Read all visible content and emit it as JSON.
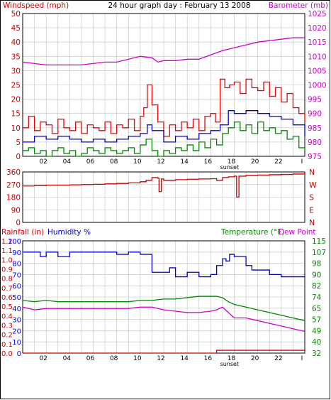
{
  "header": {
    "left_label": "Windspeed (mph)",
    "title": "24 hour graph day : February 13 2008",
    "right_label": "Barometer (mb)"
  },
  "bottom_header": {
    "rainfall_label": "Rainfall (in)",
    "humidity_label": "Humidity %",
    "temperature_label": "Temperature (°F)",
    "dewpoint_label": "Dew Point"
  },
  "colors": {
    "wind": "#ee0000",
    "avg_wind": "#0000cc",
    "gust_low": "#008800",
    "barometer": "#cc00cc",
    "direction": "#cc0000",
    "humidity": "#0000cc",
    "temperature": "#008800",
    "dewpoint": "#cc00cc",
    "rainfall": "#cc0000",
    "grid": "#c0c0c0",
    "left_axis": "#cc0000",
    "right_axis": "#cc00cc",
    "frame": "#000000"
  },
  "chart_data": [
    {
      "type": "line",
      "name": "wind-panel",
      "x_ticks": [
        "02",
        "04",
        "06",
        "08",
        "10",
        "12",
        "14",
        "16",
        "18",
        "20",
        "22",
        "I"
      ],
      "x_marker": "sunset",
      "y_left": {
        "label": "Windspeed (mph)",
        "ylim": [
          0,
          50
        ],
        "ticks": [
          0,
          5,
          10,
          15,
          20,
          25,
          30,
          35,
          40,
          45,
          50
        ]
      },
      "y_right": {
        "label": "Barometer (mb)",
        "ylim": [
          975,
          1025
        ],
        "ticks": [
          975,
          980,
          985,
          990,
          995,
          1000,
          1005,
          1010,
          1015,
          1020,
          1025
        ]
      },
      "series": [
        {
          "name": "Windspeed",
          "axis": "left",
          "x": [
            0,
            0.5,
            1,
            1.5,
            2,
            2.5,
            3,
            3.5,
            4,
            4.5,
            5,
            5.5,
            6,
            6.5,
            7,
            7.5,
            8,
            8.5,
            9,
            9.5,
            10,
            10.3,
            10.6,
            11,
            11.5,
            12,
            12.5,
            13,
            13.5,
            14,
            14.5,
            15,
            15.5,
            16,
            16.4,
            16.8,
            17.2,
            17.6,
            18,
            18.5,
            19,
            19.5,
            20,
            20.5,
            21,
            21.5,
            22,
            22.5,
            23,
            23.5,
            24
          ],
          "y": [
            10,
            14,
            9,
            12,
            11,
            8,
            13,
            10,
            9,
            12,
            8,
            11,
            10,
            9,
            12,
            8,
            11,
            10,
            13,
            9,
            14,
            17,
            25,
            18,
            12,
            7,
            11,
            9,
            12,
            10,
            13,
            9,
            14,
            15,
            12,
            27,
            24,
            25,
            26,
            22,
            27,
            24,
            23,
            26,
            21,
            24,
            19,
            22,
            17,
            15,
            12
          ]
        },
        {
          "name": "Average",
          "axis": "left",
          "x": [
            0,
            1,
            2,
            3,
            4,
            5,
            6,
            7,
            8,
            9,
            10,
            10.6,
            11,
            12,
            13,
            14,
            15,
            16,
            16.8,
            17.5,
            18,
            19,
            20,
            21,
            22,
            23,
            24
          ],
          "y": [
            5,
            7,
            6,
            7,
            6,
            5,
            6,
            5,
            6,
            7,
            8,
            11,
            9,
            5,
            7,
            6,
            8,
            9,
            11,
            16,
            15,
            16,
            15,
            14,
            13,
            11,
            7
          ]
        },
        {
          "name": "Low",
          "axis": "left",
          "x": [
            0,
            0.5,
            1,
            1.5,
            2,
            2.5,
            3,
            3.5,
            4,
            4.5,
            5,
            5.5,
            6,
            6.5,
            7,
            7.5,
            8,
            8.5,
            9,
            9.5,
            10,
            10.5,
            11,
            11.5,
            12,
            12.5,
            13,
            13.5,
            14,
            14.5,
            15,
            15.5,
            16,
            16.5,
            17,
            17.5,
            18,
            18.5,
            19,
            19.5,
            20,
            20.5,
            21,
            21.5,
            22,
            22.5,
            23,
            23.5,
            24
          ],
          "y": [
            2,
            3,
            1,
            2,
            0,
            2,
            3,
            1,
            2,
            0,
            1,
            3,
            2,
            1,
            3,
            2,
            1,
            2,
            3,
            1,
            4,
            6,
            2,
            0,
            2,
            1,
            3,
            2,
            4,
            2,
            5,
            3,
            6,
            4,
            8,
            10,
            12,
            9,
            11,
            8,
            12,
            9,
            10,
            8,
            9,
            6,
            7,
            3,
            2
          ]
        },
        {
          "name": "Barometer",
          "axis": "right",
          "x": [
            0,
            1,
            2,
            3,
            4,
            5,
            6,
            7,
            8,
            9,
            10,
            11,
            11.5,
            12,
            13,
            14,
            15,
            16,
            17,
            18,
            19,
            20,
            21,
            22,
            23,
            24
          ],
          "y": [
            1008,
            1007.5,
            1007,
            1007,
            1007,
            1007,
            1007.5,
            1008,
            1008,
            1009,
            1010,
            1009.5,
            1008,
            1008.5,
            1008.5,
            1009,
            1009,
            1010.5,
            1012,
            1013,
            1014,
            1015,
            1015.5,
            1016,
            1016.5,
            1016.5
          ]
        }
      ]
    },
    {
      "type": "line",
      "name": "direction-panel",
      "y_left": {
        "ticks": [
          0,
          90,
          180,
          270,
          360
        ],
        "ylim": [
          0,
          360
        ]
      },
      "y_right": {
        "ticks": [
          "N",
          "W",
          "S",
          "E",
          "N"
        ]
      },
      "series": [
        {
          "name": "Wind direction",
          "axis": "left",
          "x": [
            0,
            1,
            2,
            3,
            4,
            5,
            6,
            7,
            8,
            9,
            10,
            10.5,
            11,
            11.5,
            11.6,
            11.8,
            12,
            13,
            14,
            15,
            16,
            16.5,
            17,
            17.5,
            18,
            18.2,
            18.4,
            19,
            20,
            21,
            22,
            23,
            24
          ],
          "y": [
            260,
            262,
            265,
            265,
            268,
            270,
            272,
            275,
            278,
            282,
            290,
            300,
            320,
            315,
            220,
            310,
            300,
            305,
            308,
            310,
            312,
            300,
            320,
            325,
            330,
            180,
            330,
            335,
            338,
            340,
            342,
            345,
            350
          ]
        }
      ]
    },
    {
      "type": "line",
      "name": "weather-panel",
      "x_ticks": [
        "02",
        "04",
        "06",
        "08",
        "10",
        "12",
        "14",
        "16",
        "18",
        "20",
        "22",
        "I"
      ],
      "x_marker": "sunset",
      "y_left_outer": {
        "label": "Rainfall (in)",
        "ticks": [
          0.0,
          0.1,
          0.2,
          0.3,
          0.4,
          0.5,
          0.6,
          0.7,
          0.8,
          0.9,
          1.0,
          1.1,
          1.2
        ],
        "ylim": [
          0,
          1.2
        ]
      },
      "y_left_inner": {
        "label": "Humidity %",
        "ticks": [
          0,
          10,
          20,
          30,
          40,
          50,
          60,
          70,
          80,
          90,
          100
        ],
        "ylim": [
          0,
          100
        ]
      },
      "y_right": {
        "label": "Temperature (°F) Dew Point",
        "ticks": [
          32,
          40,
          49,
          57,
          65,
          74,
          82,
          90,
          98,
          107,
          115
        ],
        "ylim": [
          32,
          115
        ]
      },
      "series": [
        {
          "name": "Humidity",
          "axis": "left_inner",
          "x": [
            0,
            1,
            1.5,
            2,
            3,
            4,
            5,
            7,
            8,
            9,
            10,
            11,
            12,
            12.5,
            13,
            14,
            15,
            16,
            16.5,
            17,
            17.3,
            17.6,
            18,
            19,
            19.5,
            20,
            21,
            22,
            23,
            24
          ],
          "y": [
            90,
            90,
            86,
            90,
            86,
            90,
            90,
            90,
            88,
            90,
            88,
            72,
            72,
            76,
            68,
            72,
            68,
            70,
            78,
            84,
            82,
            88,
            86,
            78,
            74,
            74,
            70,
            68,
            68,
            68
          ]
        },
        {
          "name": "Temperature",
          "axis": "right",
          "x": [
            0,
            1,
            2,
            3,
            4,
            5,
            6,
            7,
            8,
            9,
            10,
            11,
            12,
            13,
            14,
            15,
            16,
            16.5,
            17,
            17.5,
            18,
            19,
            20,
            21,
            22,
            23,
            24
          ],
          "y": [
            71,
            70,
            71,
            70,
            70,
            70,
            70,
            70,
            70,
            70,
            71,
            71,
            72,
            72,
            73,
            74,
            74,
            74,
            73,
            70,
            68,
            66,
            64,
            62,
            60,
            58,
            56
          ]
        },
        {
          "name": "Dew Point",
          "axis": "right",
          "x": [
            0,
            1,
            2,
            3,
            4,
            5,
            6,
            7,
            8,
            9,
            10,
            11,
            12,
            13,
            14,
            15,
            16,
            16.5,
            17,
            17.5,
            18,
            19,
            20,
            21,
            22,
            23,
            24
          ],
          "y": [
            66,
            64,
            65,
            65,
            65,
            65,
            65,
            65,
            65,
            65,
            66,
            66,
            64,
            63,
            62,
            62,
            63,
            64,
            66,
            62,
            58,
            58,
            56,
            54,
            52,
            50,
            48
          ]
        },
        {
          "name": "Rainfall",
          "axis": "left_outer",
          "x": [
            0,
            8,
            16,
            16.5,
            24
          ],
          "y": [
            0.0,
            0.0,
            0.0,
            0.03,
            0.03
          ]
        }
      ]
    }
  ]
}
